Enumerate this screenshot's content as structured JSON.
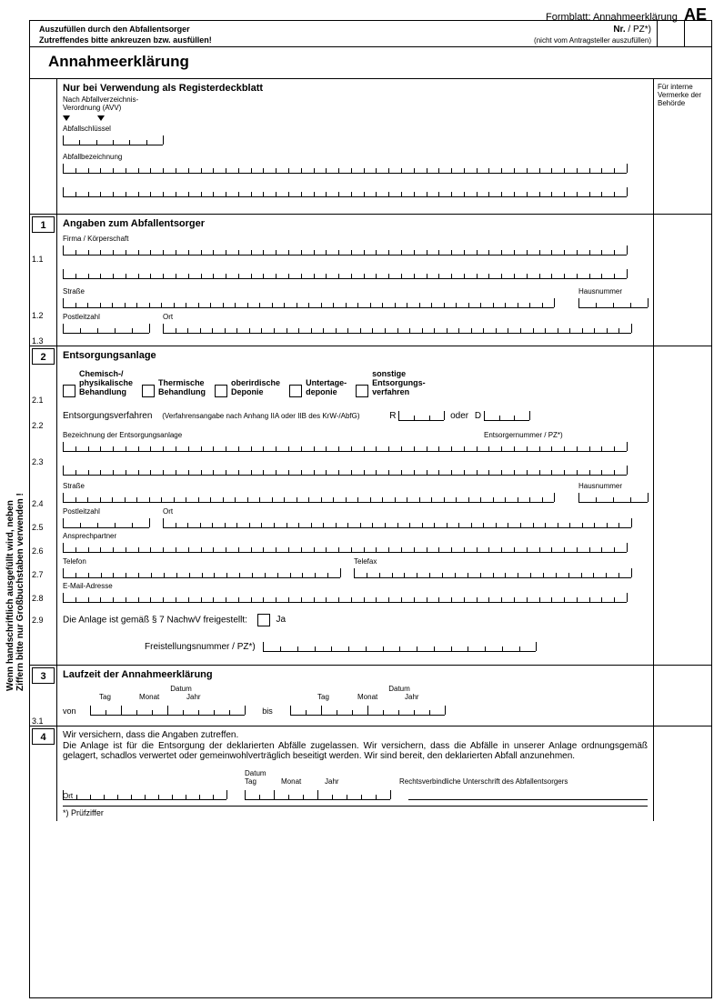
{
  "header": {
    "formblatt": "Formblatt: Annahmeerklärung",
    "code": "AE",
    "fill_by": "Auszufüllen durch den Abfallentsorger",
    "check_note": "Zutreffendes bitte ankreuzen bzw. ausfüllen!",
    "nr_label": "Nr.",
    "pz_suffix": " / PZ*)",
    "not_applicant": "(nicht vom Antragsteller auszufüllen)",
    "title": "Annahmeerklärung"
  },
  "sidetext": "Wenn handschriftlich ausgefüllt wird, neben\nZiffern bitte nur Großbuchstaben verwenden !",
  "sidecol": {
    "note": "Für interne Vermerke der Behörde"
  },
  "sec0": {
    "title": "Nur bei Verwendung als Registerdeckblatt",
    "sub": "Nach Abfallverzeichnis-\nVerordnung (AVV)",
    "key_label": "Abfallschlüssel",
    "desc_label": "Abfallbezeichnung"
  },
  "sec1": {
    "num": "1",
    "title": "Angaben zum Abfallentsorger",
    "firma": "Firma / Körperschaft",
    "n11": "1.1",
    "strasse": "Straße",
    "hausnr": "Hausnummer",
    "n12": "1.2",
    "plz": "Postleitzahl",
    "ort": "Ort",
    "n13": "1.3"
  },
  "sec2": {
    "num": "2",
    "title": "Entsorgungsanlage",
    "n21": "2.1",
    "opt1": "Chemisch-/\nphysikalische\nBehandlung",
    "opt2": "Thermische\nBehandlung",
    "opt3": "oberirdische\nDeponie",
    "opt4": "Untertage-\ndeponie",
    "opt5": "sonstige\nEntsorgungs-\nverfahren",
    "n22": "2.2",
    "verfahren": "Entsorgungsverfahren",
    "verfahren_note": "(Verfahrensangabe nach Anhang IIA oder IIB des KrW-/AbfG)",
    "R": "R",
    "oder": "oder",
    "D": "D",
    "bez": "Bezeichnung der Entsorgungsanlage",
    "entsnr": "Entsorgernummer / PZ*)",
    "n23": "2.3",
    "strasse": "Straße",
    "hausnr": "Hausnummer",
    "n24": "2.4",
    "plz": "Postleitzahl",
    "ort": "Ort",
    "n25": "2.5",
    "ansprech": "Ansprechpartner",
    "n26": "2.6",
    "tel": "Telefon",
    "fax": "Telefax",
    "n27": "2.7",
    "email": "E-Mail-Adresse",
    "n28": "2.8",
    "n29": "2.9",
    "frei_text": "Die Anlage ist gemäß § 7 NachwV freigestellt:",
    "ja": "Ja",
    "frei_nr": "Freistellungsnummer / PZ*)"
  },
  "sec3": {
    "num": "3",
    "title": "Laufzeit der Annahmeerklärung",
    "datum": "Datum",
    "tag": "Tag",
    "monat": "Monat",
    "jahr": "Jahr",
    "n31": "3.1",
    "von": "von",
    "bis": "bis"
  },
  "sec4": {
    "num": "4",
    "assure": "Wir versichern, dass die Angaben zutreffen.",
    "body": "Die Anlage ist für die Entsorgung der deklarierten Abfälle zugelassen. Wir versichern, dass die Abfälle in unserer Anlage ordnungsgemäß gelagert, schadlos verwertet oder gemeinwohlverträglich beseitigt werden. Wir sind bereit, den deklarierten Abfall anzunehmen.",
    "ort": "Ort",
    "datum": "Datum",
    "tag": "Tag",
    "monat": "Monat",
    "jahr": "Jahr",
    "sig": "Rechtsverbindliche Unterschrift des Abfallentsorgers",
    "footnote": "*)  Prüfziffer"
  },
  "ticks": {
    "short6": 6,
    "long30": 30,
    "long45": 45,
    "long33": 33,
    "plz5": 5,
    "haus4": 4,
    "date8": 8
  },
  "colors": {
    "line": "#000000",
    "bg": "#ffffff"
  }
}
